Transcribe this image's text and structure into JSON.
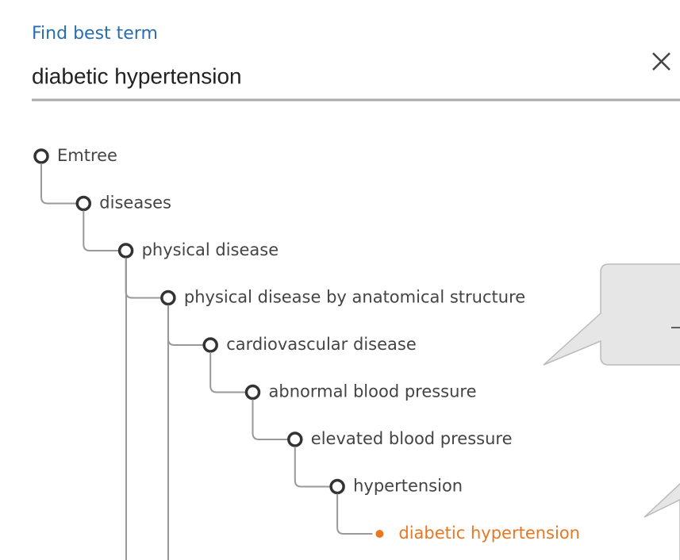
{
  "search": {
    "label": "Find best term",
    "query": "diabetic hypertension"
  },
  "tree": {
    "nodes": [
      {
        "label": "Emtree"
      },
      {
        "label": "diseases"
      },
      {
        "label": "physical disease"
      },
      {
        "label": "physical disease by anatomical structure"
      },
      {
        "label": "cardiovascular disease"
      },
      {
        "label": "abnormal blood pressure"
      },
      {
        "label": "elevated blood pressure"
      },
      {
        "label": "hypertension"
      },
      {
        "label": "diabetic hypertension",
        "selected": true
      }
    ]
  }
}
